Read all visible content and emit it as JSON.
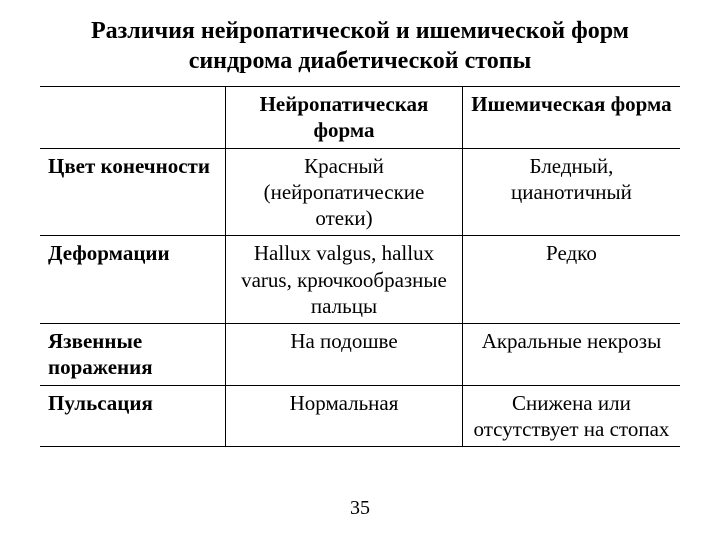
{
  "title_line1": "Различия нейропатической и ишемической форм",
  "title_line2": "синдрома диабетической стопы",
  "table": {
    "header": {
      "col0": "",
      "col1": "Нейропатическая форма",
      "col2": "Ишемическая форма"
    },
    "rows": [
      {
        "label": "Цвет конечности",
        "neuro": "Красный (нейропатические отеки)",
        "isch": "Бледный, цианотичный"
      },
      {
        "label": "Деформации",
        "neuro": "Hallux valgus, hallux varus, крючкообразные пальцы",
        "isch": "Редко"
      },
      {
        "label": "Язвенные поражения",
        "neuro": "На подошве",
        "isch": "Акральные некрозы"
      },
      {
        "label": "Пульсация",
        "neuro": "Нормальная",
        "isch": "Снижена или отсутствует на стопах"
      }
    ]
  },
  "page_number": "35",
  "style": {
    "font_family": "Times New Roman",
    "title_fontsize_pt": 18,
    "body_fontsize_pt": 16,
    "text_color": "#000000",
    "background_color": "#ffffff",
    "border_color": "#000000",
    "column_widths_pct": [
      29,
      37,
      34
    ]
  }
}
